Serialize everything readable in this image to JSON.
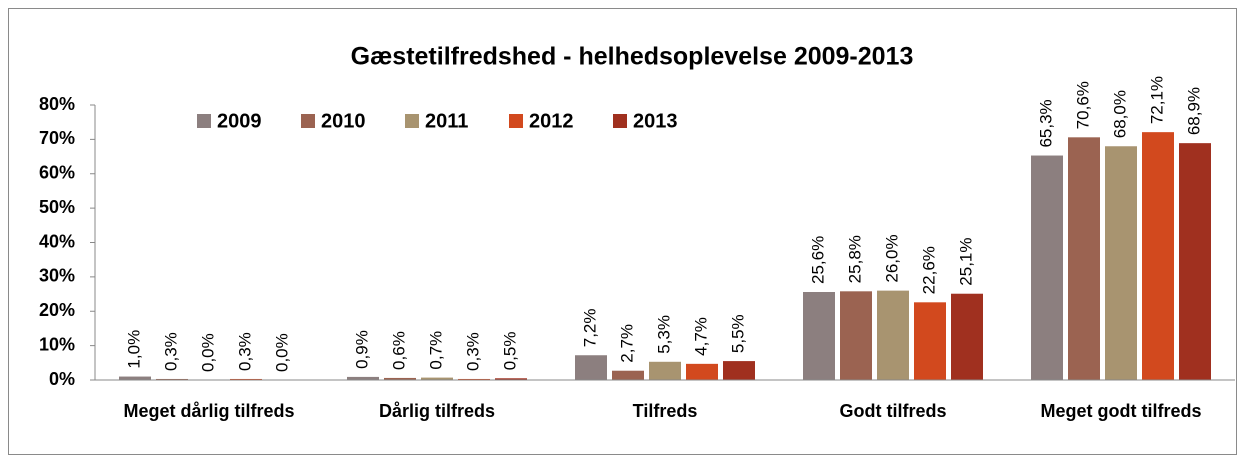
{
  "chart_data": {
    "type": "bar",
    "title": "Gæstetilfredshed - helhedsoplevelse 2009-2013",
    "categories": [
      "Meget dårlig tilfreds",
      "Dårlig tilfreds",
      "Tilfreds",
      "Godt tilfreds",
      "Meget godt tilfreds"
    ],
    "series": [
      {
        "name": "2009",
        "color": "#8c7f7f",
        "values": [
          1.0,
          0.9,
          7.2,
          25.6,
          65.3
        ],
        "value_labels": [
          "1,0%",
          "0,9%",
          "7,2%",
          "25,6%",
          "65,3%"
        ]
      },
      {
        "name": "2010",
        "color": "#9b6351",
        "values": [
          0.3,
          0.6,
          2.7,
          25.8,
          70.6
        ],
        "value_labels": [
          "0,3%",
          "0,6%",
          "2,7%",
          "25,8%",
          "70,6%"
        ]
      },
      {
        "name": "2011",
        "color": "#a89470",
        "values": [
          0.0,
          0.7,
          5.3,
          26.0,
          68.0
        ],
        "value_labels": [
          "0,0%",
          "0,7%",
          "5,3%",
          "26,0%",
          "68,0%"
        ]
      },
      {
        "name": "2012",
        "color": "#d2491e",
        "values": [
          0.3,
          0.3,
          4.7,
          22.6,
          72.1
        ],
        "value_labels": [
          "0,3%",
          "0,3%",
          "4,7%",
          "22,6%",
          "72,1%"
        ]
      },
      {
        "name": "2013",
        "color": "#a0301f",
        "values": [
          0.0,
          0.5,
          5.5,
          25.1,
          68.9
        ],
        "value_labels": [
          "0,0%",
          "0,5%",
          "5,5%",
          "25,1%",
          "68,9%"
        ]
      }
    ],
    "ylim": [
      0,
      80
    ],
    "yticks": [
      {
        "value": 0,
        "label": "0%"
      },
      {
        "value": 10,
        "label": "10%"
      },
      {
        "value": 20,
        "label": "20%"
      },
      {
        "value": 30,
        "label": "30%"
      },
      {
        "value": 40,
        "label": "40%"
      },
      {
        "value": 50,
        "label": "50%"
      },
      {
        "value": 60,
        "label": "60%"
      },
      {
        "value": 70,
        "label": "70%"
      },
      {
        "value": 80,
        "label": "80%"
      }
    ],
    "legend": "top"
  }
}
